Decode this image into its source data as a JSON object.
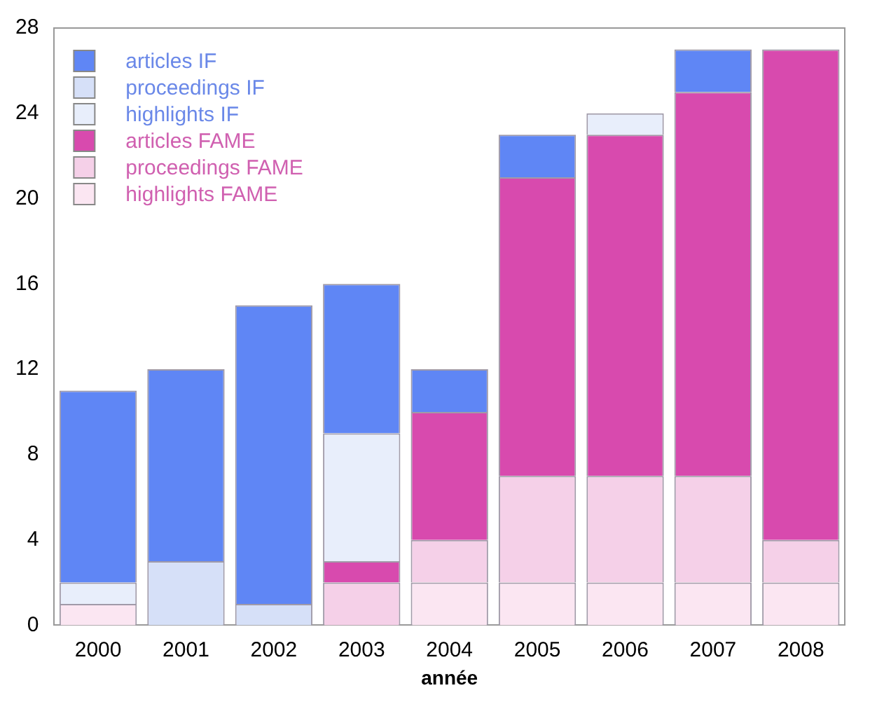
{
  "chart_data": {
    "type": "bar",
    "stacked": true,
    "xlabel": "année",
    "categories": [
      "2000",
      "2001",
      "2002",
      "2003",
      "2004",
      "2005",
      "2006",
      "2007",
      "2008"
    ],
    "series": [
      {
        "name": "highlights FAME",
        "color": "#fbe6f2",
        "values": [
          1,
          0,
          0,
          0,
          2,
          2,
          2,
          2,
          2
        ]
      },
      {
        "name": "proceedings FAME",
        "color": "#f5d0e8",
        "values": [
          0,
          0,
          0,
          2,
          2,
          5,
          5,
          5,
          2
        ]
      },
      {
        "name": "articles FAME",
        "color": "#d84aae",
        "values": [
          0,
          0,
          0,
          1,
          6,
          14,
          16,
          18,
          23
        ]
      },
      {
        "name": "highlights IF",
        "color": "#e8eefb",
        "values": [
          1,
          0,
          0,
          6,
          0,
          0,
          1,
          0,
          0
        ]
      },
      {
        "name": "proceedings IF",
        "color": "#d6e0f8",
        "values": [
          0,
          3,
          1,
          0,
          0,
          0,
          0,
          0,
          0
        ]
      },
      {
        "name": "articles IF",
        "color": "#5f86f5",
        "values": [
          9,
          9,
          14,
          7,
          2,
          2,
          0,
          2,
          0
        ]
      }
    ],
    "ylim": [
      0,
      28
    ],
    "yticks": [
      0,
      4,
      8,
      12,
      16,
      20,
      24,
      28
    ],
    "grid": false,
    "legend": "top left"
  }
}
